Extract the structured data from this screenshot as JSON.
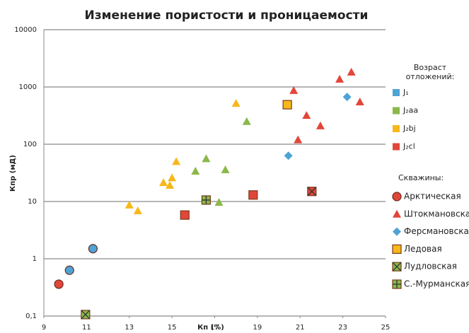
{
  "chart_data": {
    "type": "scatter",
    "title": "Изменение пористости и проницаемости",
    "x_label": "Кп (%)",
    "y_label": "Кпр (мД)",
    "xlim": [
      9,
      25
    ],
    "xticks": [
      9,
      11,
      13,
      15,
      17,
      19,
      21,
      23,
      25
    ],
    "ylim": [
      0.1,
      10000
    ],
    "log_y": true,
    "yticks": [
      {
        "value": 0.1,
        "label": "0,1"
      },
      1,
      10,
      100,
      1000,
      10000
    ],
    "grid": true,
    "age_legend": {
      "title": [
        "Возраст",
        "отложений:"
      ],
      "items": [
        {
          "name": "J₁",
          "color": "#4ea3d6"
        },
        {
          "name": "J₂aa",
          "color": "#8ab84a"
        },
        {
          "name": "J₂bj",
          "color": "#f6b81c"
        },
        {
          "name": "J₂cl",
          "color": "#e2463a"
        }
      ]
    },
    "well_legend_title": "Скважины:",
    "series": [
      {
        "name": "Арктическая",
        "marker": "circle",
        "legend_color": "#e2463a",
        "x": [
          9.7,
          10.2,
          11.3
        ],
        "values": [
          0.36,
          0.63,
          1.5
        ],
        "colors": [
          "#e2463a",
          "#4ea3d6",
          "#4ea3d6"
        ]
      },
      {
        "name": "Штокмановская",
        "marker": "triangle",
        "legend_color": "#e2463a",
        "x": [
          20.7,
          21.3,
          20.9,
          21.95,
          22.85,
          23.4,
          23.8,
          13.0,
          13.4,
          14.6,
          14.9,
          15.0,
          15.2,
          18.0,
          16.1,
          16.6,
          17.2,
          17.5,
          18.5
        ],
        "values": [
          870,
          320,
          120,
          210,
          1370,
          1820,
          550,
          8.7,
          6.9,
          21.5,
          19.2,
          26,
          50,
          520,
          34,
          56,
          9.7,
          36,
          250
        ],
        "colors": [
          "#e2463a",
          "#e2463a",
          "#e2463a",
          "#e2463a",
          "#e2463a",
          "#e2463a",
          "#e2463a",
          "#f6b81c",
          "#f6b81c",
          "#f6b81c",
          "#f6b81c",
          "#f6b81c",
          "#f6b81c",
          "#f6b81c",
          "#8ab84a",
          "#8ab84a",
          "#8ab84a",
          "#8ab84a",
          "#8ab84a"
        ]
      },
      {
        "name": "Ферсмановская",
        "marker": "diamond",
        "legend_color": "#4ea3d6",
        "x": [
          20.45,
          23.2
        ],
        "values": [
          63,
          670
        ],
        "colors": [
          "#4ea3d6",
          "#4ea3d6"
        ]
      },
      {
        "name": "Ледовая",
        "marker": "square",
        "legend_color": "#f6b81c",
        "x": [
          20.4,
          18.8,
          15.6
        ],
        "values": [
          490,
          13,
          5.8
        ],
        "colors": [
          "#f6b81c",
          "#e2463a",
          "#e2463a"
        ]
      },
      {
        "name": "Лудловская",
        "marker": "xsquare",
        "legend_color": "#8ab84a",
        "x": [
          10.95,
          21.55
        ],
        "values": [
          0.106,
          15
        ],
        "colors": [
          "#8ab84a",
          "#e2463a"
        ]
      },
      {
        "name": "С.-Мурманская",
        "marker": "plussquare",
        "legend_color": "#8ab84a",
        "x": [
          16.6
        ],
        "values": [
          10.6
        ],
        "colors": [
          "#8ab84a"
        ]
      }
    ]
  }
}
